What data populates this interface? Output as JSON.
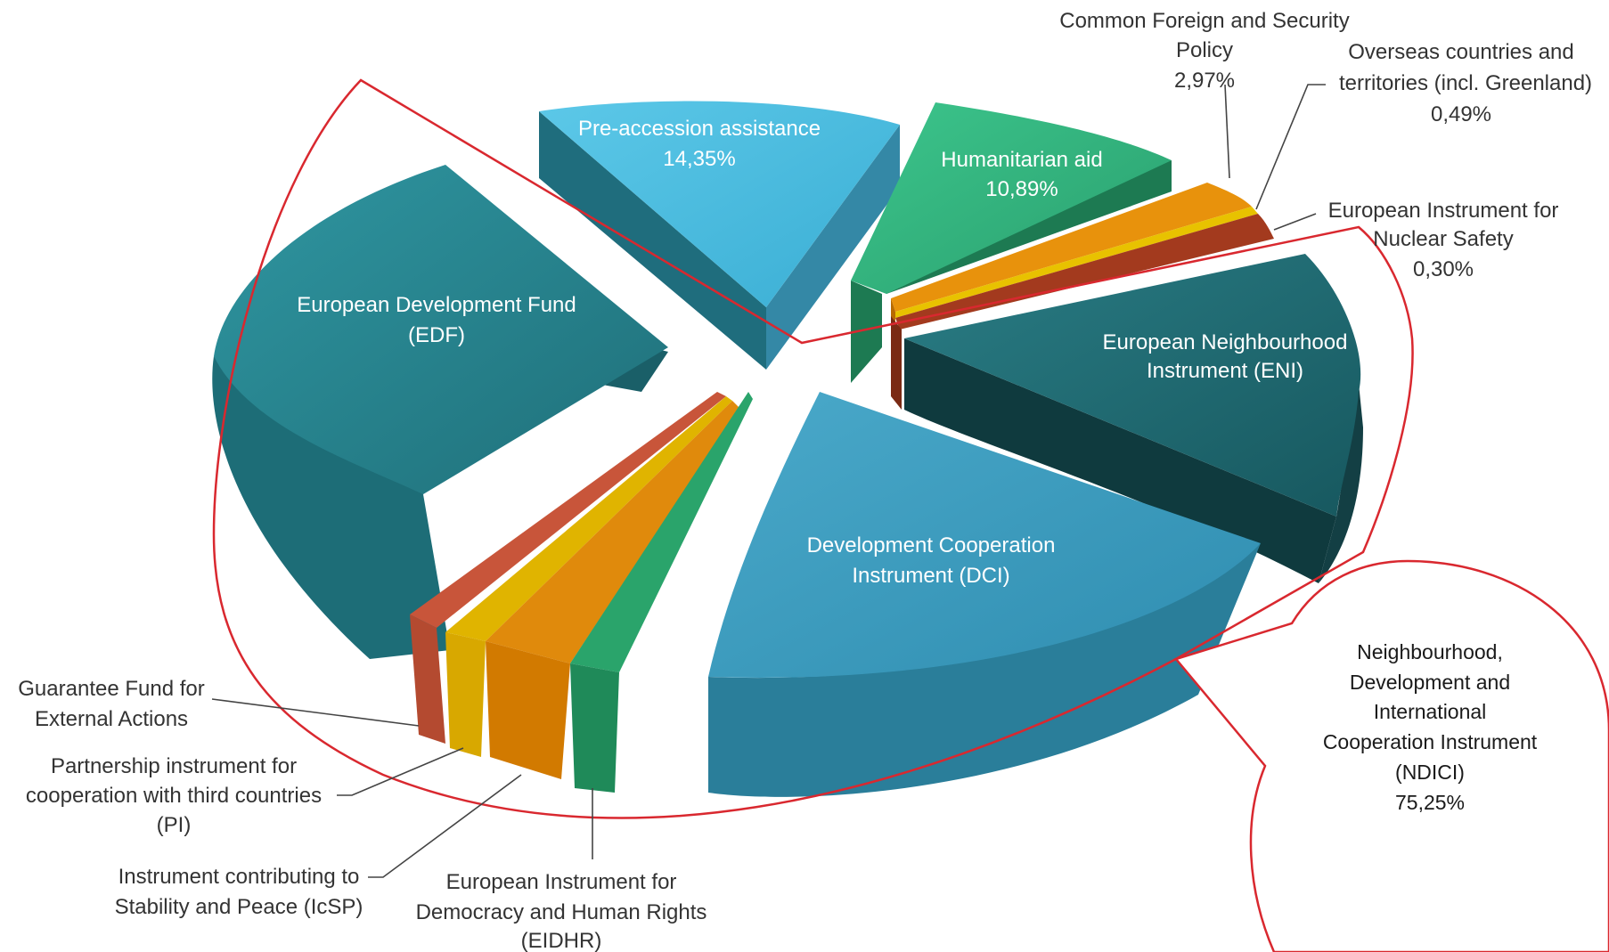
{
  "chart_data": {
    "type": "pie",
    "title": "",
    "style": "3d-exploded",
    "slices": [
      {
        "name": "Pre-accession assistance",
        "value": 14.35,
        "value_label": "14,35%",
        "color": "#4dbcdf",
        "label_position": "inside"
      },
      {
        "name": "Humanitarian aid",
        "value": 10.89,
        "value_label": "10,89%",
        "color": "#33b57e",
        "label_position": "inside"
      },
      {
        "name": "Common Foreign and Security Policy",
        "value": 2.97,
        "value_label": "2,97%",
        "color": "#e8920c",
        "label_position": "outside"
      },
      {
        "name": "Overseas countries and territories (incl. Greenland)",
        "value": 0.49,
        "value_label": "0,49%",
        "color": "#e8c200",
        "label_position": "outside"
      },
      {
        "name": "European Instrument for Nuclear Safety",
        "value": 0.3,
        "value_label": "0,30%",
        "color": "#a33a1e",
        "label_position": "outside"
      },
      {
        "name": "European Neighbourhood Instrument (ENI)",
        "value": null,
        "value_label": "",
        "color": "#1d6b72",
        "label_position": "inside"
      },
      {
        "name": "Development Cooperation Instrument (DCI)",
        "value": null,
        "value_label": "",
        "color": "#3a9fc2",
        "label_position": "inside"
      },
      {
        "name": "European Instrument for Democracy and Human Rights (EIDHR)",
        "value": null,
        "value_label": "",
        "color": "#2aa46b",
        "label_position": "outside"
      },
      {
        "name": "Instrument contributing to Stability and Peace (IcSP)",
        "value": null,
        "value_label": "",
        "color": "#e08a0c",
        "label_position": "outside"
      },
      {
        "name": "Partnership instrument for cooperation with third countries (PI)",
        "value": null,
        "value_label": "",
        "color": "#e0b400",
        "label_position": "outside"
      },
      {
        "name": "Guarantee Fund for External Actions",
        "value": null,
        "value_label": "",
        "color": "#c8553a",
        "label_position": "outside"
      },
      {
        "name": "European Development Fund (EDF)",
        "value": null,
        "value_label": "",
        "color": "#2a8a95",
        "label_position": "inside"
      }
    ],
    "group": {
      "name": "Neighbourhood, Development and International Cooperation Instrument (NDICI)",
      "value": 75.25,
      "value_label": "75,25%",
      "outline_color": "#d9282f"
    }
  },
  "labels": {
    "pre_accession": [
      "Pre-accession assistance",
      "14,35%"
    ],
    "humanitarian": [
      "Humanitarian aid",
      "10,89%"
    ],
    "cfsp": [
      "Common Foreign and Security",
      "Policy",
      "2,97%"
    ],
    "oct": [
      "Overseas countries and",
      "territories (incl. Greenland)",
      "0,49%"
    ],
    "eins": [
      "European Instrument for",
      "Nuclear Safety",
      "0,30%"
    ],
    "eni": [
      "European Neighbourhood",
      "Instrument (ENI)"
    ],
    "dci": [
      "Development Cooperation",
      "Instrument (DCI)"
    ],
    "edf": [
      "European Development Fund",
      "(EDF)"
    ],
    "gfea": [
      "Guarantee Fund for",
      "External Actions"
    ],
    "pi": [
      "Partnership instrument for",
      "cooperation with third countries",
      "(PI)"
    ],
    "icsp": [
      "Instrument contributing to",
      "Stability and Peace (IcSP)"
    ],
    "eidhr": [
      "European Instrument for",
      "Democracy and Human Rights",
      "(EIDHR)"
    ],
    "ndici": [
      "Neighbourhood,",
      "Development and",
      "International",
      "Cooperation Instrument",
      "(NDICI)",
      "75,25%"
    ]
  }
}
